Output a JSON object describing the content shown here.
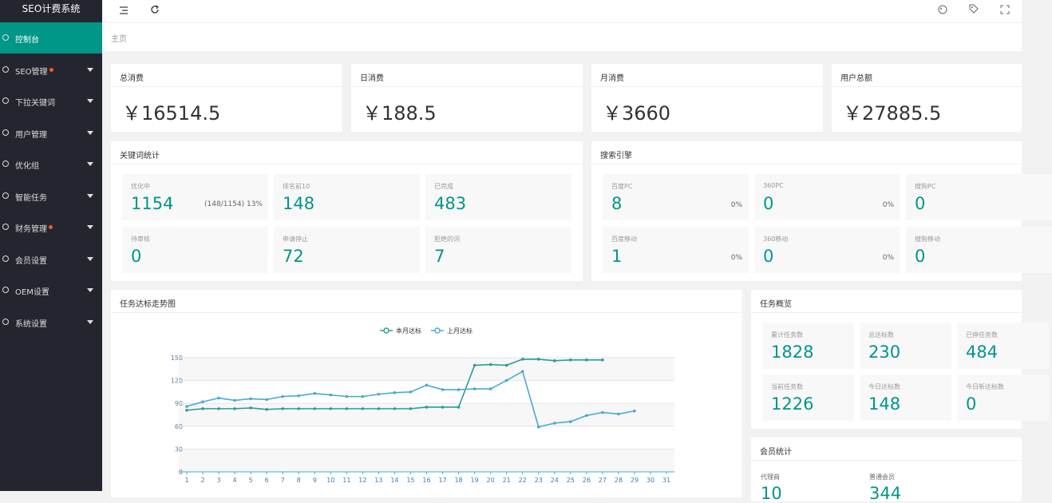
{
  "sidebar": {
    "title": "SEO计费系统",
    "menu": [
      {
        "label": "控制台",
        "active": true,
        "badge": false,
        "expandable": false
      },
      {
        "label": "SEO管理",
        "active": false,
        "badge": true,
        "expandable": true
      },
      {
        "label": "下拉关键词",
        "active": false,
        "badge": false,
        "expandable": true
      },
      {
        "label": "用户管理",
        "active": false,
        "badge": false,
        "expandable": true
      },
      {
        "label": "优化组",
        "active": false,
        "badge": false,
        "expandable": true
      },
      {
        "label": "智能任务",
        "active": false,
        "badge": false,
        "expandable": true
      },
      {
        "label": "财务管理",
        "active": false,
        "badge": true,
        "expandable": true
      },
      {
        "label": "会员设置",
        "active": false,
        "badge": false,
        "expandable": true
      },
      {
        "label": "OEM设置",
        "active": false,
        "badge": false,
        "expandable": true
      },
      {
        "label": "系统设置",
        "active": false,
        "badge": false,
        "expandable": true
      }
    ]
  },
  "breadcrumb": "主页",
  "stats": [
    {
      "label": "总消费",
      "value": "￥16514.5"
    },
    {
      "label": "日消费",
      "value": "￥188.5"
    },
    {
      "label": "月消费",
      "value": "￥3660"
    },
    {
      "label": "用户总额",
      "value": "￥27885.5"
    }
  ],
  "keyword_stats": {
    "title": "关键词统计",
    "items": [
      {
        "label": "优化中",
        "value": "1154",
        "note": "(148/1154) 13%"
      },
      {
        "label": "排名前10",
        "value": "148"
      },
      {
        "label": "已完成",
        "value": "483"
      },
      {
        "label": "待审核",
        "value": "0"
      },
      {
        "label": "申请停止",
        "value": "72"
      },
      {
        "label": "拒绝的词",
        "value": "7"
      }
    ]
  },
  "search_engines": {
    "title": "搜索引擎",
    "items": [
      {
        "label": "百度PC",
        "value": "8",
        "percent": "0%"
      },
      {
        "label": "360PC",
        "value": "0",
        "percent": "0%"
      },
      {
        "label": "搜狗PC",
        "value": "0"
      },
      {
        "label": "百度移动",
        "value": "1",
        "percent": "0%"
      },
      {
        "label": "360移动",
        "value": "0",
        "percent": "0%"
      },
      {
        "label": "搜狗移动",
        "value": "0"
      }
    ]
  },
  "chart_data": {
    "type": "line",
    "title": "任务达标走势图",
    "categories": [
      1,
      2,
      3,
      4,
      5,
      6,
      7,
      8,
      9,
      10,
      11,
      12,
      13,
      14,
      15,
      16,
      17,
      18,
      19,
      20,
      21,
      22,
      23,
      24,
      25,
      26,
      27,
      28,
      29,
      30,
      31
    ],
    "series": [
      {
        "name": "本月达标",
        "color": "#2a9d95",
        "values": [
          81,
          83,
          83,
          83,
          84,
          82,
          83,
          83,
          83,
          83,
          83,
          83,
          83,
          83,
          83,
          85,
          85,
          85,
          140,
          141,
          140,
          148,
          148,
          146,
          147,
          147,
          147,
          null,
          null,
          null,
          null
        ]
      },
      {
        "name": "上月达标",
        "color": "#4aa9d4",
        "values": [
          86,
          92,
          97,
          94,
          96,
          95,
          99,
          100,
          103,
          101,
          99,
          99,
          102,
          104,
          105,
          114,
          108,
          108,
          109,
          109,
          120,
          132,
          59,
          64,
          66,
          74,
          78,
          76,
          80,
          null,
          null
        ]
      }
    ],
    "ylim": [
      0,
      150
    ],
    "yticks": [
      0,
      30,
      60,
      90,
      120,
      150
    ],
    "grid": true,
    "legend": "top"
  },
  "task_overview": {
    "title": "任务概览",
    "items": [
      {
        "label": "累计任务数",
        "value": "1828"
      },
      {
        "label": "总达标数",
        "value": "230"
      },
      {
        "label": "已停任务数",
        "value": "484"
      },
      {
        "label": "当前任务数",
        "value": "1226"
      },
      {
        "label": "今日达标数",
        "value": "148"
      },
      {
        "label": "今日新达标数",
        "value": "0"
      }
    ]
  },
  "member_stats": {
    "title": "会员统计",
    "items": [
      {
        "label": "代理商",
        "value": "10"
      },
      {
        "label": "普通会员",
        "value": "344"
      }
    ]
  }
}
